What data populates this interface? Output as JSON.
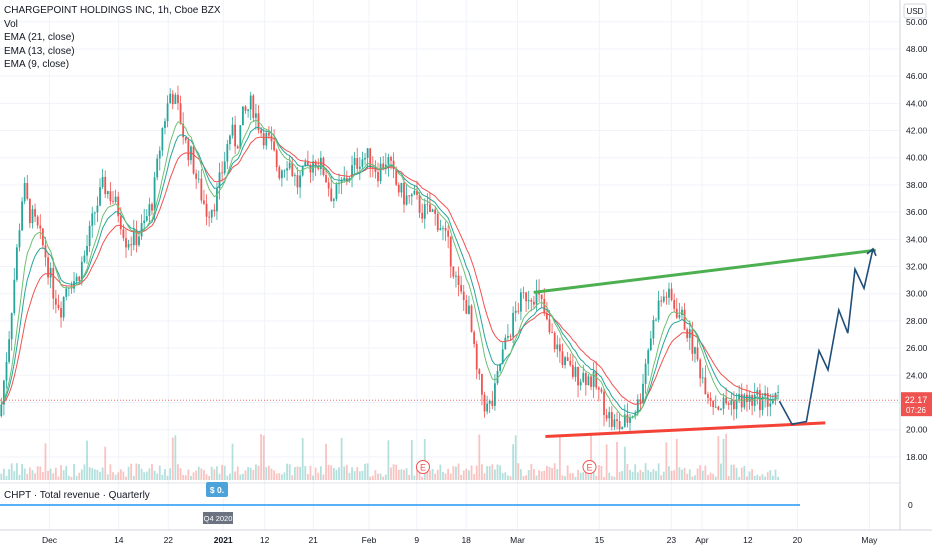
{
  "legend": {
    "symbol": "CHARGEPOINT HOLDINGS INC, 1h, Cboe BZX",
    "vol": "Vol",
    "ema21": "EMA (21, close)",
    "ema13": "EMA (13, close)",
    "ema9": "EMA (9, close)"
  },
  "currency": "USD",
  "price_badge": {
    "price": "22.17",
    "countdown": "07:26",
    "color": "#ef5350"
  },
  "earnings_marker": "E",
  "indicator": {
    "title": "CHPT · Total revenue · Quarterly",
    "zero_label": "0",
    "flag_label": "$ 0.",
    "period_label": "Q4 2020"
  },
  "colors": {
    "up": "#26a69a",
    "down": "#ef5350",
    "ema21": "#ef5350",
    "ema13": "#26a69a",
    "ema9": "#6fbf73",
    "trend_top": "#4caf50",
    "trend_bottom": "#f44336",
    "projection": "#1f4e79",
    "revenue": "#2196f3",
    "grid": "#f0f3fa",
    "text": "#131722"
  },
  "chart_data": {
    "type": "line",
    "title": "CHARGEPOINT HOLDINGS INC, 1h, Cboe BZX",
    "y_axis": {
      "ticks": [
        18,
        20,
        22,
        24,
        26,
        28,
        30,
        32,
        34,
        36,
        38,
        40,
        42,
        44,
        46,
        48,
        50
      ],
      "tick_labels": [
        "18.00",
        "20.00",
        "22.00",
        "24.00",
        "26.00",
        "28.00",
        "30.00",
        "32.00",
        "34.00",
        "36.00",
        "38.00",
        "40.00",
        "42.00",
        "44.00",
        "46.00",
        "48.00",
        "50.00"
      ],
      "ylim": [
        16.3,
        51.6
      ]
    },
    "x_axis": {
      "tick_labels": [
        "Dec",
        "14",
        "22",
        "2021",
        "12",
        "21",
        "Feb",
        "9",
        "18",
        "Mar",
        "15",
        "23",
        "Apr",
        "12",
        "20",
        "May"
      ],
      "domain": [
        0,
        100
      ],
      "tick_positions": [
        5.5,
        13.2,
        18.7,
        24.8,
        29.4,
        34.8,
        41.0,
        46.3,
        51.8,
        57.5,
        66.6,
        74.6,
        78.0,
        83.1,
        88.6,
        96.6
      ]
    },
    "series": [
      {
        "kind": "price",
        "x": [
          0,
          1,
          2,
          2.6,
          3.2,
          4,
          5,
          6,
          6.8,
          7.5,
          8.5,
          9.5,
          10.5,
          11.5,
          12.5,
          13.2,
          14,
          15,
          16,
          17,
          18,
          19,
          20,
          20.6,
          21.3,
          22,
          23,
          24,
          25,
          25.6,
          26.3,
          27,
          28,
          29,
          30,
          31,
          32,
          33,
          34,
          35,
          36,
          37,
          38,
          39,
          40,
          41,
          42,
          43,
          44,
          45,
          46,
          47,
          48,
          49,
          50,
          51,
          52,
          53,
          54,
          54.8,
          55.6,
          56.5,
          57.5,
          58.5,
          59.5,
          60.3,
          61,
          62,
          63,
          64,
          65,
          66,
          67,
          68,
          69,
          70,
          71,
          72,
          73,
          74,
          75,
          76,
          77,
          78,
          78.6,
          79.3,
          80,
          81,
          82,
          83,
          84,
          85,
          86,
          86.6
        ],
        "values": [
          21,
          27,
          34,
          38,
          36,
          35,
          33,
          30,
          29,
          31,
          31,
          33,
          36,
          38,
          37,
          36,
          34,
          34,
          35,
          37,
          42,
          45,
          43,
          41,
          40,
          38,
          36,
          37,
          40,
          42,
          41,
          43,
          44,
          42,
          41,
          39,
          40,
          38,
          39,
          40,
          39,
          37,
          38,
          39,
          40,
          40,
          39,
          40,
          38,
          37,
          37,
          36,
          36,
          35,
          33,
          30,
          29,
          24,
          21.5,
          22,
          25,
          27,
          29,
          30,
          30,
          29,
          27,
          26,
          24.5,
          24,
          24,
          23.5,
          22,
          20.5,
          20.2,
          21,
          22,
          26,
          29,
          30,
          29,
          28,
          26,
          24,
          23,
          22,
          21.8,
          22,
          22.2,
          22.1,
          22.2,
          22.17,
          22.17,
          22.17
        ],
        "note": ""
      },
      {
        "kind": "projection",
        "x": [
          86.6,
          88,
          89.6,
          91,
          92,
          93.2,
          94.2,
          95,
          96,
          97
        ],
        "values": [
          22.1,
          20.4,
          20.6,
          25.8,
          24.4,
          28.8,
          27.1,
          31.8,
          30.4,
          33.3
        ]
      },
      {
        "kind": "trendline-upper",
        "x": [
          59.3,
          97.3
        ],
        "values": [
          30.1,
          33.2
        ]
      },
      {
        "kind": "trendline-lower",
        "x": [
          60.6,
          91.7
        ],
        "values": [
          19.5,
          20.5
        ]
      }
    ],
    "earnings_at": [
      47,
      65.5
    ],
    "grid": true
  }
}
